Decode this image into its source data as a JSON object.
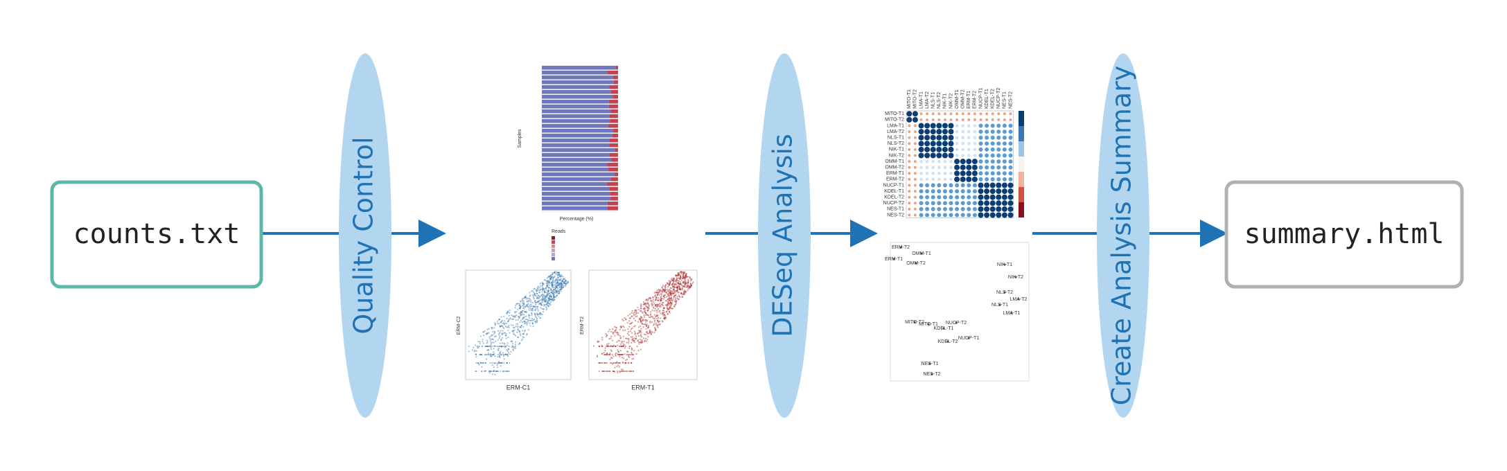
{
  "nodes": [
    {
      "label": "counts.txt"
    },
    {
      "label": "Quality Control"
    },
    {
      "label": "DESeq Analysis"
    },
    {
      "label": "Create Analysis Summary"
    },
    {
      "label": "summary.html"
    }
  ],
  "thumbnails": {
    "qc_barplot": {
      "x_label": "Percentage (%)",
      "y_label": "Samples",
      "legend_title": "Reads"
    },
    "scatter_control": {
      "x_label": "ERM-C1",
      "y_label": "ERM-C2"
    },
    "scatter_treated": {
      "x_label": "ERM-T1",
      "y_label": "ERM-T2"
    },
    "correlation_heatmap": {
      "samples": [
        "MITO-T1",
        "MITO-T2",
        "LMA-T1",
        "LMA-T2",
        "NLS-T1",
        "NLS-T2",
        "NIK-T1",
        "NIK-T2",
        "OMM-T1",
        "OMM-T2",
        "ERM-T1",
        "ERM-T2",
        "NUCP-T1",
        "KDEL-T1",
        "KDEL-T2",
        "NUCP-T2",
        "NES-T1",
        "NES-T2"
      ]
    },
    "tsne_plot": {
      "labels": [
        "ERM-T2",
        "OMM-T1",
        "ERM-T1",
        "OMM-T2",
        "NIK-T1",
        "NIK-T2",
        "NLS-T2",
        "LMA-T2",
        "NLS-T1",
        "LMA-T1",
        "MITO-T2",
        "MITO-T1",
        "NUCP-T2",
        "KDEL-T1",
        "NUCP-T1",
        "KDEL-T2",
        "NES-T1",
        "NES-T2"
      ]
    }
  }
}
